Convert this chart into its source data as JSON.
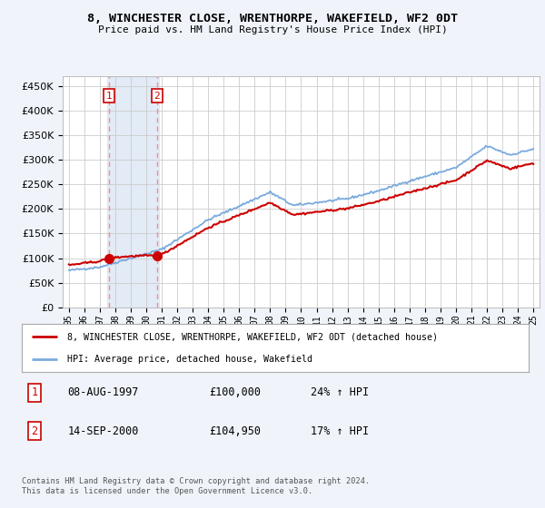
{
  "title1": "8, WINCHESTER CLOSE, WRENTHORPE, WAKEFIELD, WF2 0DT",
  "title2": "Price paid vs. HM Land Registry's House Price Index (HPI)",
  "legend_line1": "8, WINCHESTER CLOSE, WRENTHORPE, WAKEFIELD, WF2 0DT (detached house)",
  "legend_line2": "HPI: Average price, detached house, Wakefield",
  "sale1_date": "08-AUG-1997",
  "sale1_price": 100000,
  "sale1_hpi": "24% ↑ HPI",
  "sale1_year": 1997.6,
  "sale2_date": "14-SEP-2000",
  "sale2_price": 104950,
  "sale2_hpi": "17% ↑ HPI",
  "sale2_year": 2000.7,
  "footer": "Contains HM Land Registry data © Crown copyright and database right 2024.\nThis data is licensed under the Open Government Licence v3.0.",
  "bg_color": "#f0f4fa",
  "plot_bg": "#ffffff",
  "grid_color": "#cccccc",
  "hpi_color": "#7aaadd",
  "price_color": "#cc0000",
  "vline_color": "#ff8888",
  "marker_color": "#cc0000",
  "shade_color": "#dde8f5",
  "ylim": [
    0,
    470000
  ],
  "yticks": [
    0,
    50000,
    100000,
    150000,
    200000,
    250000,
    300000,
    350000,
    400000,
    450000
  ],
  "xlim_start": 1994.6,
  "xlim_end": 2025.4
}
